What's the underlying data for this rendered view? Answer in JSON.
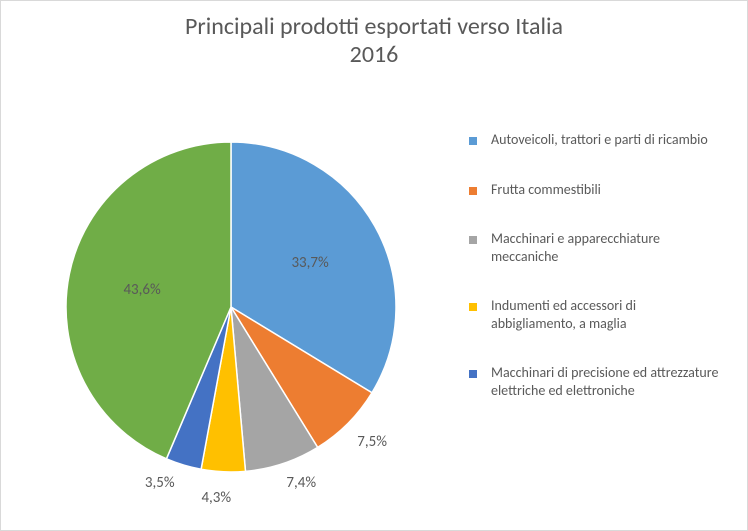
{
  "chart": {
    "type": "pie",
    "title_line1": "Principali prodotti esportati verso Italia",
    "title_line2": "2016",
    "title_fontsize": 24,
    "title_color": "#595959",
    "background_color": "#ffffff",
    "border_color": "#d9d9d9",
    "pie_radius": 165,
    "pie_stroke": "#ffffff",
    "pie_stroke_width": 1.5,
    "label_color": "#595959",
    "label_fontsize": 15,
    "legend_fontsize": 14,
    "legend_marker_size": 8,
    "slices": [
      {
        "label": "Autoveicoli, trattori e parti di ricambio",
        "value": 33.7,
        "color": "#5b9bd5",
        "pct": "33,7%",
        "show_label": true
      },
      {
        "label": "Frutta commestibili",
        "value": 7.5,
        "color": "#ed7d31",
        "pct": "7,5%",
        "show_label": true
      },
      {
        "label": "Macchinari e apparecchiature meccaniche",
        "value": 7.4,
        "color": "#a5a5a5",
        "pct": "7,4%",
        "show_label": true
      },
      {
        "label": "Indumenti ed accessori di abbigliamento, a maglia",
        "value": 4.3,
        "color": "#ffc000",
        "pct": "4,3%",
        "show_label": true
      },
      {
        "label": "Macchinari di precisione ed attrezzature elettriche ed elettroniche",
        "value": 3.5,
        "color": "#4472c4",
        "pct": "3,5%",
        "show_label": true
      },
      {
        "label": "",
        "value": 43.6,
        "color": "#70ad47",
        "pct": "43,6%",
        "show_label": true
      }
    ]
  }
}
